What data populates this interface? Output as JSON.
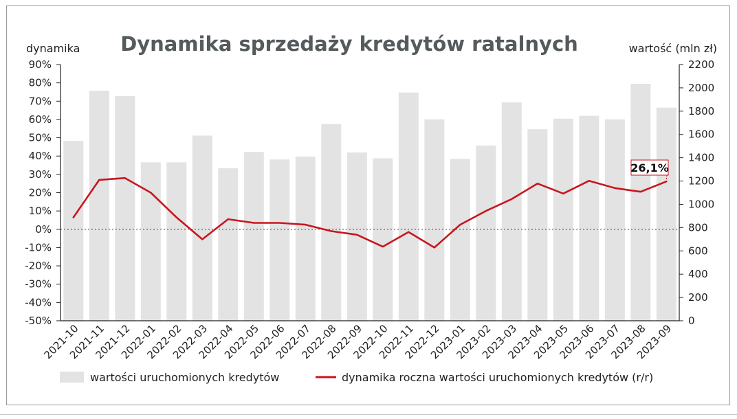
{
  "chart_data": {
    "type": "bar+line",
    "title": "Dynamika sprzedaży kredytów ratalnych",
    "y_left_label": "dynamika",
    "y_right_label": "wartość (mln zł)",
    "y_left_ticks": [
      "90%",
      "80%",
      "70%",
      "60%",
      "50%",
      "40%",
      "30%",
      "20%",
      "10%",
      "0%",
      "-10%",
      "-20%",
      "-30%",
      "-40%",
      "-50%"
    ],
    "y_right_ticks": [
      "2200",
      "2000",
      "1800",
      "1600",
      "1400",
      "1200",
      "1000",
      "800",
      "600",
      "400",
      "200",
      "0"
    ],
    "y_left_range": [
      -50,
      90
    ],
    "y_right_range": [
      0,
      2200
    ],
    "categories": [
      "2021-10",
      "2021-11",
      "2021-12",
      "2022-01",
      "2022-02",
      "2022-03",
      "2022-04",
      "2022-05",
      "2022-06",
      "2022-07",
      "2022-08",
      "2022-09",
      "2022-10",
      "2022-11",
      "2022-12",
      "2023-01",
      "2023-02",
      "2023-03",
      "2023-04",
      "2023-05",
      "2023-06",
      "2023-07",
      "2023-08",
      "2023-09"
    ],
    "series": [
      {
        "name": "wartości uruchomionych kredytów",
        "type": "bar",
        "axis": "right",
        "color": "#e3e3e3",
        "values": [
          1545,
          1975,
          1930,
          1360,
          1360,
          1590,
          1310,
          1450,
          1385,
          1410,
          1690,
          1445,
          1395,
          1960,
          1730,
          1390,
          1505,
          1875,
          1645,
          1735,
          1760,
          1730,
          2035,
          1830
        ]
      },
      {
        "name": "dynamika roczna wartości uruchomionych kredytów (r/r)",
        "type": "line",
        "axis": "left",
        "color": "#c8161d",
        "values": [
          6.5,
          27,
          28,
          20,
          6.5,
          -5.5,
          5.5,
          3.5,
          3.5,
          2.5,
          -1,
          -3,
          -9.5,
          -1.5,
          -10,
          2.5,
          10,
          16.5,
          25,
          19.5,
          26.5,
          22.5,
          20.5,
          26.1
        ]
      }
    ],
    "annotation": {
      "text": "26,1%",
      "category": "2023-09"
    },
    "reference_line": {
      "axis": "left",
      "value": 0,
      "style": "dotted"
    },
    "grid": false,
    "legend_position": "bottom"
  }
}
